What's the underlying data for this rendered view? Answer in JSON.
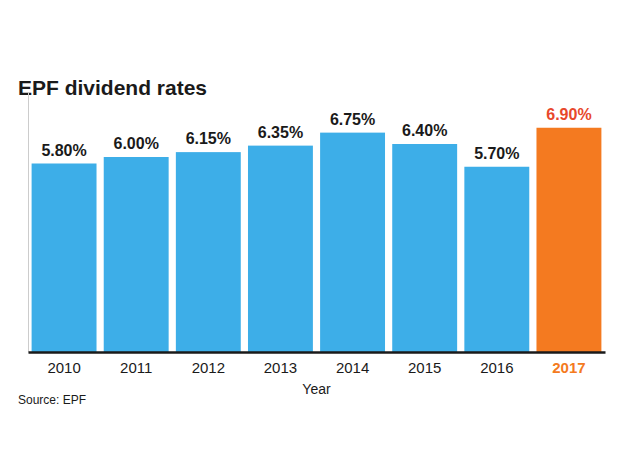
{
  "chart_data": {
    "type": "bar",
    "title": "EPF dividend rates",
    "x_label": "Year",
    "source": "Source: EPF",
    "categories": [
      "2010",
      "2011",
      "2012",
      "2013",
      "2014",
      "2015",
      "2016",
      "2017"
    ],
    "values": [
      5.8,
      6.0,
      6.15,
      6.35,
      6.75,
      6.4,
      5.7,
      6.9
    ],
    "value_labels": [
      "5.80%",
      "6.00%",
      "6.15%",
      "6.35%",
      "6.75%",
      "6.40%",
      "5.70%",
      "6.90%"
    ],
    "colors": [
      "#3daee8",
      "#3daee8",
      "#3daee8",
      "#3daee8",
      "#3daee8",
      "#3daee8",
      "#3daee8",
      "#f47a20"
    ],
    "ylim": [
      0,
      8
    ],
    "yticks": [
      0
    ],
    "data_labels": true,
    "tick_labels": "x",
    "grid": false
  }
}
